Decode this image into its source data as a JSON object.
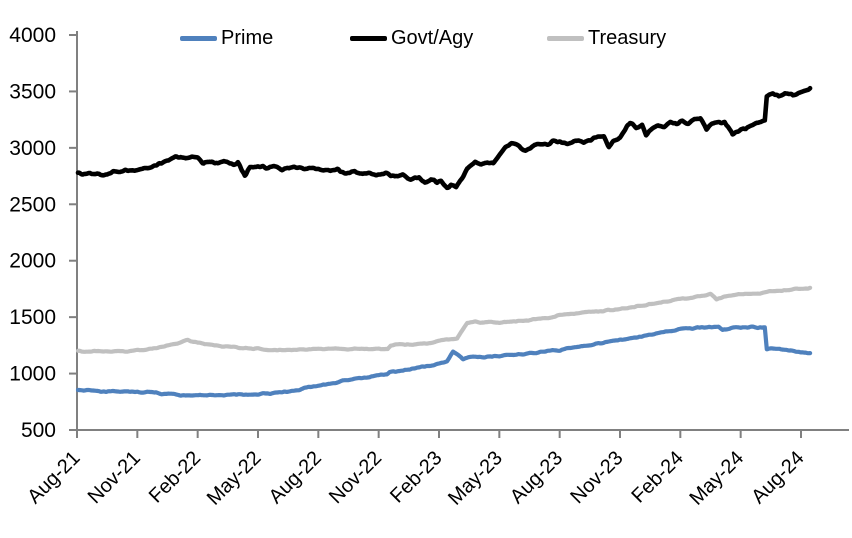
{
  "chart_data": {
    "type": "line",
    "title": "",
    "legend_position": "top",
    "grid": false,
    "background": "#FFFFFF",
    "axis_color": "#808080",
    "text_color": "#000000",
    "ylim": [
      500,
      4000
    ],
    "y_ticks": [
      500,
      1000,
      1500,
      2000,
      2500,
      3000,
      3500,
      4000
    ],
    "x_tick_labels": [
      "Aug-21",
      "Nov-21",
      "Feb-22",
      "May-22",
      "Aug-22",
      "Nov-22",
      "Feb-23",
      "May-23",
      "Aug-23",
      "Nov-23",
      "Feb-24",
      "May-24",
      "Aug-24"
    ],
    "x_tick_positions_months": [
      0,
      3,
      6,
      9,
      12,
      15,
      18,
      21,
      24,
      27,
      30,
      33,
      36
    ],
    "x_range_months": [
      0,
      36.45
    ],
    "x_unit": "months since Aug-2021",
    "series": [
      {
        "name": "Prime",
        "color": "#4F81BD",
        "points": [
          [
            0.05,
            855
          ],
          [
            0.5,
            852
          ],
          [
            1,
            848
          ],
          [
            1.5,
            845
          ],
          [
            2,
            843
          ],
          [
            2.5,
            841
          ],
          [
            3,
            838
          ],
          [
            3.5,
            833
          ],
          [
            4,
            828
          ],
          [
            4.5,
            820
          ],
          [
            5,
            812
          ],
          [
            5.5,
            806
          ],
          [
            6,
            803
          ],
          [
            6.5,
            804
          ],
          [
            7,
            806
          ],
          [
            7.5,
            809
          ],
          [
            8,
            812
          ],
          [
            8.5,
            814
          ],
          [
            9,
            816
          ],
          [
            9.5,
            822
          ],
          [
            10,
            830
          ],
          [
            10.5,
            842
          ],
          [
            11,
            858
          ],
          [
            11.5,
            876
          ],
          [
            12,
            895
          ],
          [
            12.5,
            910
          ],
          [
            13,
            925
          ],
          [
            13.5,
            941
          ],
          [
            14,
            958
          ],
          [
            14.5,
            972
          ],
          [
            15,
            985
          ],
          [
            15.4,
            990
          ],
          [
            15.55,
            1012
          ],
          [
            16,
            1022
          ],
          [
            16.5,
            1037
          ],
          [
            17,
            1052
          ],
          [
            17.5,
            1070
          ],
          [
            18,
            1088
          ],
          [
            18.4,
            1105
          ],
          [
            18.7,
            1190
          ],
          [
            19.2,
            1130
          ],
          [
            19.7,
            1152
          ],
          [
            20.2,
            1148
          ],
          [
            20.6,
            1155
          ],
          [
            21,
            1158
          ],
          [
            21.5,
            1165
          ],
          [
            22,
            1172
          ],
          [
            22.5,
            1180
          ],
          [
            23,
            1188
          ],
          [
            23.5,
            1198
          ],
          [
            24,
            1208
          ],
          [
            24.5,
            1225
          ],
          [
            25,
            1240
          ],
          [
            25.5,
            1255
          ],
          [
            26,
            1270
          ],
          [
            26.5,
            1285
          ],
          [
            27,
            1300
          ],
          [
            27.5,
            1312
          ],
          [
            28,
            1322
          ],
          [
            28.5,
            1342
          ],
          [
            29,
            1360
          ],
          [
            29.5,
            1378
          ],
          [
            30,
            1392
          ],
          [
            30.5,
            1400
          ],
          [
            31,
            1406
          ],
          [
            31.5,
            1410
          ],
          [
            31.9,
            1412
          ],
          [
            32.1,
            1385
          ],
          [
            32.4,
            1402
          ],
          [
            32.8,
            1408
          ],
          [
            33.2,
            1412
          ],
          [
            33.6,
            1410
          ],
          [
            34,
            1408
          ],
          [
            34.2,
            1406
          ],
          [
            34.3,
            1215
          ],
          [
            34.8,
            1218
          ],
          [
            35.2,
            1210
          ],
          [
            35.6,
            1202
          ],
          [
            36,
            1190
          ],
          [
            36.45,
            1180
          ]
        ]
      },
      {
        "name": "Govt/Agy",
        "color": "#000000",
        "points": [
          [
            0.05,
            2775
          ],
          [
            0.5,
            2762
          ],
          [
            1,
            2780
          ],
          [
            1.5,
            2765
          ],
          [
            2,
            2788
          ],
          [
            2.5,
            2796
          ],
          [
            3,
            2808
          ],
          [
            3.5,
            2822
          ],
          [
            4,
            2852
          ],
          [
            4.5,
            2888
          ],
          [
            5,
            2922
          ],
          [
            5.15,
            2928
          ],
          [
            5.4,
            2898
          ],
          [
            5.7,
            2915
          ],
          [
            6,
            2900
          ],
          [
            6.3,
            2862
          ],
          [
            6.6,
            2888
          ],
          [
            6.85,
            2858
          ],
          [
            7,
            2852
          ],
          [
            7.3,
            2875
          ],
          [
            7.6,
            2860
          ],
          [
            8,
            2868
          ],
          [
            8.2,
            2790
          ],
          [
            8.35,
            2758
          ],
          [
            8.6,
            2830
          ],
          [
            9,
            2842
          ],
          [
            9.4,
            2812
          ],
          [
            9.8,
            2832
          ],
          [
            10.2,
            2812
          ],
          [
            10.6,
            2830
          ],
          [
            11,
            2818
          ],
          [
            11.4,
            2825
          ],
          [
            11.8,
            2812
          ],
          [
            12.2,
            2800
          ],
          [
            12.6,
            2790
          ],
          [
            13,
            2802
          ],
          [
            13.4,
            2778
          ],
          [
            13.8,
            2795
          ],
          [
            14.2,
            2772
          ],
          [
            14.6,
            2782
          ],
          [
            15,
            2758
          ],
          [
            15.4,
            2768
          ],
          [
            15.8,
            2748
          ],
          [
            16.2,
            2758
          ],
          [
            16.6,
            2722
          ],
          [
            17,
            2742
          ],
          [
            17.3,
            2688
          ],
          [
            17.6,
            2718
          ],
          [
            17.9,
            2695
          ],
          [
            18.1,
            2710
          ],
          [
            18.4,
            2652
          ],
          [
            18.6,
            2668
          ],
          [
            18.85,
            2650
          ],
          [
            19.1,
            2718
          ],
          [
            19.4,
            2822
          ],
          [
            19.8,
            2872
          ],
          [
            20.1,
            2858
          ],
          [
            20.4,
            2880
          ],
          [
            20.7,
            2862
          ],
          [
            21,
            2948
          ],
          [
            21.3,
            3008
          ],
          [
            21.6,
            3028
          ],
          [
            22,
            3012
          ],
          [
            22.3,
            2988
          ],
          [
            22.6,
            3018
          ],
          [
            23,
            3028
          ],
          [
            23.5,
            3042
          ],
          [
            24,
            3058
          ],
          [
            24.4,
            3048
          ],
          [
            24.8,
            3068
          ],
          [
            25.2,
            3062
          ],
          [
            25.6,
            3082
          ],
          [
            26,
            3098
          ],
          [
            26.2,
            3105
          ],
          [
            26.45,
            3018
          ],
          [
            26.7,
            3065
          ],
          [
            27,
            3092
          ],
          [
            27.5,
            3218
          ],
          [
            27.8,
            3180
          ],
          [
            28.1,
            3215
          ],
          [
            28.3,
            3118
          ],
          [
            28.6,
            3165
          ],
          [
            28.9,
            3205
          ],
          [
            29.2,
            3185
          ],
          [
            29.5,
            3222
          ],
          [
            29.8,
            3198
          ],
          [
            30.1,
            3238
          ],
          [
            30.4,
            3225
          ],
          [
            30.7,
            3252
          ],
          [
            31,
            3262
          ],
          [
            31.3,
            3162
          ],
          [
            31.7,
            3222
          ],
          [
            32.2,
            3240
          ],
          [
            32.6,
            3118
          ],
          [
            33,
            3162
          ],
          [
            33.4,
            3192
          ],
          [
            33.8,
            3228
          ],
          [
            34.2,
            3232
          ],
          [
            34.3,
            3448
          ],
          [
            34.6,
            3478
          ],
          [
            34.9,
            3452
          ],
          [
            35.2,
            3488
          ],
          [
            35.6,
            3470
          ],
          [
            36,
            3502
          ],
          [
            36.45,
            3522
          ]
        ]
      },
      {
        "name": "Treasury",
        "color": "#C0C0C0",
        "points": [
          [
            0.05,
            1200
          ],
          [
            0.5,
            1197
          ],
          [
            1,
            1200
          ],
          [
            1.5,
            1196
          ],
          [
            2,
            1202
          ],
          [
            2.5,
            1200
          ],
          [
            3,
            1206
          ],
          [
            3.5,
            1212
          ],
          [
            4,
            1225
          ],
          [
            4.5,
            1245
          ],
          [
            5,
            1265
          ],
          [
            5.5,
            1298
          ],
          [
            5.8,
            1282
          ],
          [
            6,
            1272
          ],
          [
            6.5,
            1258
          ],
          [
            7,
            1250
          ],
          [
            7.5,
            1240
          ],
          [
            8,
            1230
          ],
          [
            8.5,
            1222
          ],
          [
            9,
            1218
          ],
          [
            9.5,
            1213
          ],
          [
            10,
            1212
          ],
          [
            10.5,
            1214
          ],
          [
            11,
            1211
          ],
          [
            11.5,
            1216
          ],
          [
            12,
            1222
          ],
          [
            12.5,
            1218
          ],
          [
            13,
            1222
          ],
          [
            13.5,
            1216
          ],
          [
            14,
            1218
          ],
          [
            14.5,
            1213
          ],
          [
            15,
            1218
          ],
          [
            15.45,
            1220
          ],
          [
            15.6,
            1252
          ],
          [
            16,
            1256
          ],
          [
            16.5,
            1252
          ],
          [
            17,
            1262
          ],
          [
            17.5,
            1268
          ],
          [
            18,
            1290
          ],
          [
            18.5,
            1305
          ],
          [
            18.9,
            1312
          ],
          [
            19.4,
            1452
          ],
          [
            19.8,
            1458
          ],
          [
            20.2,
            1452
          ],
          [
            20.6,
            1462
          ],
          [
            21,
            1450
          ],
          [
            21.4,
            1462
          ],
          [
            21.8,
            1458
          ],
          [
            22.2,
            1468
          ],
          [
            22.6,
            1478
          ],
          [
            23,
            1488
          ],
          [
            23.5,
            1495
          ],
          [
            24,
            1518
          ],
          [
            24.5,
            1528
          ],
          [
            25,
            1538
          ],
          [
            25.5,
            1545
          ],
          [
            26,
            1552
          ],
          [
            26.5,
            1562
          ],
          [
            27,
            1572
          ],
          [
            27.5,
            1586
          ],
          [
            28,
            1600
          ],
          [
            28.5,
            1615
          ],
          [
            29,
            1630
          ],
          [
            29.5,
            1645
          ],
          [
            30,
            1660
          ],
          [
            30.5,
            1672
          ],
          [
            31,
            1688
          ],
          [
            31.5,
            1702
          ],
          [
            31.8,
            1660
          ],
          [
            32.2,
            1680
          ],
          [
            32.6,
            1692
          ],
          [
            33,
            1700
          ],
          [
            33.5,
            1706
          ],
          [
            34,
            1715
          ],
          [
            34.5,
            1726
          ],
          [
            35,
            1736
          ],
          [
            35.5,
            1745
          ],
          [
            36,
            1756
          ],
          [
            36.45,
            1760
          ]
        ]
      }
    ]
  }
}
